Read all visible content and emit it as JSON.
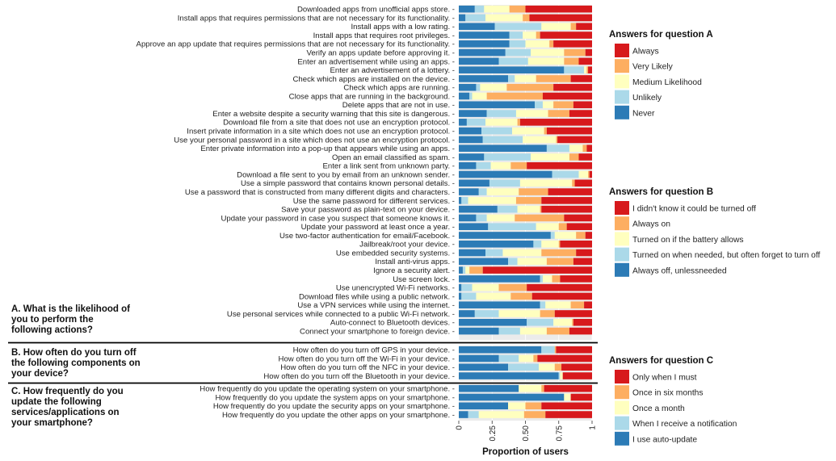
{
  "chart_data": {
    "type": "bar",
    "orientation": "horizontal",
    "stacked": true,
    "xlabel": "Proportion of users",
    "xlim": [
      0,
      1
    ],
    "x_ticks": [
      "0",
      "0.25",
      "0.50",
      "0.75",
      "1"
    ],
    "grid": true,
    "legend_position": "right",
    "panels": [
      {
        "id": "A",
        "title": [
          "A. What is the likelihood of",
          "you to perform the",
          "following actions?"
        ],
        "legend_title": "Answers for question A",
        "categories_order": [
          "Never",
          "Unlikely",
          "Medium Likelihood",
          "Very Likely",
          "Always"
        ],
        "legend": [
          {
            "label": "Always",
            "color": "#d7191c"
          },
          {
            "label": "Very Likely",
            "color": "#fdae61"
          },
          {
            "label": "Medium Likelihood",
            "color": "#ffffbf"
          },
          {
            "label": "Unlikely",
            "color": "#abd9e9"
          },
          {
            "label": "Never",
            "color": "#2c7bb6"
          }
        ],
        "rows": [
          {
            "label": "Downloaded apps from unofficial apps store.",
            "values": [
              0.12,
              0.07,
              0.19,
              0.12,
              0.5
            ]
          },
          {
            "label": "Install apps that requires permissions that are not necessary for its functionality.",
            "values": [
              0.05,
              0.15,
              0.28,
              0.05,
              0.47
            ]
          },
          {
            "label": "Install apps with a low rating.",
            "values": [
              0.27,
              0.35,
              0.22,
              0.04,
              0.12
            ]
          },
          {
            "label": "Install apps that requires root privileges.",
            "values": [
              0.38,
              0.1,
              0.1,
              0.03,
              0.39
            ]
          },
          {
            "label": "Approve an app update that requires permissions that are not necessary for its functionality.",
            "values": [
              0.38,
              0.12,
              0.18,
              0.03,
              0.29
            ]
          },
          {
            "label": "Verify an apps update before approving it.",
            "values": [
              0.35,
              0.19,
              0.25,
              0.16,
              0.05
            ]
          },
          {
            "label": "Enter an advertisement while using an apps.",
            "values": [
              0.3,
              0.22,
              0.27,
              0.11,
              0.1
            ]
          },
          {
            "label": "Enter an advertisement of a lottery.",
            "values": [
              0.79,
              0.15,
              0.02,
              0.01,
              0.03
            ]
          },
          {
            "label": "Check which apps are installed on the device.",
            "values": [
              0.37,
              0.05,
              0.16,
              0.26,
              0.16
            ]
          },
          {
            "label": "Check which apps are running.",
            "values": [
              0.13,
              0.03,
              0.2,
              0.35,
              0.29
            ]
          },
          {
            "label": "Close apps that are running in the background.",
            "values": [
              0.08,
              0.02,
              0.11,
              0.42,
              0.37
            ]
          },
          {
            "label": "Delete apps that are not in use.",
            "values": [
              0.57,
              0.06,
              0.08,
              0.15,
              0.14
            ]
          },
          {
            "label": "Enter a website despite a security warning that this site is dangerous.",
            "values": [
              0.21,
              0.22,
              0.24,
              0.16,
              0.17
            ]
          },
          {
            "label": "Download file from a site that does not use an encryption protocol.",
            "values": [
              0.06,
              0.14,
              0.24,
              0.02,
              0.54
            ]
          },
          {
            "label": "Insert private information in a site which does not use an encryption protocol.",
            "values": [
              0.17,
              0.23,
              0.24,
              0.02,
              0.34
            ]
          },
          {
            "label": "Use your personal password in a site which does not use an encryption protocol.",
            "values": [
              0.18,
              0.3,
              0.25,
              0.01,
              0.26
            ]
          },
          {
            "label": "Enter private information into a pop-up that appears while using an apps.",
            "values": [
              0.66,
              0.17,
              0.1,
              0.03,
              0.04
            ]
          },
          {
            "label": "Open an email classified as spam.",
            "values": [
              0.19,
              0.35,
              0.29,
              0.07,
              0.1
            ]
          },
          {
            "label": "Enter a link sent from unknown party.",
            "values": [
              0.13,
              0.11,
              0.15,
              0.12,
              0.49
            ]
          },
          {
            "label": "Download a file sent to you by email from an unknown sender.",
            "values": [
              0.7,
              0.2,
              0.07,
              0.01,
              0.02
            ]
          },
          {
            "label": "Use a simple password that contains known personal details.",
            "values": [
              0.23,
              0.23,
              0.39,
              0.02,
              0.13
            ]
          },
          {
            "label": "Use a password that is constructed from many different digits and characters.",
            "values": [
              0.15,
              0.06,
              0.24,
              0.22,
              0.33
            ]
          },
          {
            "label": "Use the same password for different services.",
            "values": [
              0.02,
              0.05,
              0.36,
              0.19,
              0.38
            ]
          },
          {
            "label": "Save your password as plain-text on your device.",
            "values": [
              0.29,
              0.15,
              0.17,
              0.01,
              0.38
            ]
          },
          {
            "label": "Update your password in case you suspect that someone knows it.",
            "values": [
              0.13,
              0.08,
              0.21,
              0.37,
              0.21
            ]
          },
          {
            "label": "Update your password at least once a year.",
            "values": [
              0.22,
              0.36,
              0.17,
              0.06,
              0.19
            ]
          },
          {
            "label": "Use two-factor authentication for email/Facebook.",
            "values": [
              0.69,
              0.03,
              0.16,
              0.07,
              0.05
            ]
          },
          {
            "label": "Jailbreak/root your device.",
            "values": [
              0.56,
              0.06,
              0.13,
              0.01,
              0.24
            ]
          },
          {
            "label": "Use embedded security systems.",
            "values": [
              0.2,
              0.13,
              0.29,
              0.26,
              0.12
            ]
          },
          {
            "label": "Install anti-virus apps.",
            "values": [
              0.37,
              0.07,
              0.22,
              0.2,
              0.14
            ]
          },
          {
            "label": "Ignore a security alert.",
            "values": [
              0.03,
              0.02,
              0.03,
              0.1,
              0.82
            ]
          },
          {
            "label": "Use screen lock.",
            "values": [
              0.61,
              0.02,
              0.07,
              0.06,
              0.24
            ]
          },
          {
            "label": "Use unencrypted Wi-Fi networks.",
            "values": [
              0.02,
              0.08,
              0.2,
              0.21,
              0.49
            ]
          },
          {
            "label": "Download files while using a public network.",
            "values": [
              0.02,
              0.11,
              0.26,
              0.16,
              0.45
            ]
          },
          {
            "label": "Use a VPN services while using the internet.",
            "values": [
              0.61,
              0.04,
              0.19,
              0.1,
              0.06
            ]
          },
          {
            "label": "Use personal services while connected to a public Wi-Fi network.",
            "values": [
              0.12,
              0.18,
              0.31,
              0.11,
              0.28
            ]
          },
          {
            "label": "Auto-connect to Bluetooth devices.",
            "values": [
              0.51,
              0.2,
              0.14,
              0.01,
              0.14
            ]
          },
          {
            "label": "Connect your smartphone to foreign device.",
            "values": [
              0.3,
              0.16,
              0.2,
              0.17,
              0.17
            ]
          }
        ]
      },
      {
        "id": "B",
        "title": [
          "B. How often do you turn off",
          "the following components on",
          "your device?"
        ],
        "legend_title": "Answers for question B",
        "categories_order": [
          "Always off, unlessneeded",
          "Turned on when needed, but often forget to turn off",
          "Turned on if the battery allows",
          "Always on",
          "I didn't know it could be turned off"
        ],
        "legend": [
          {
            "label": "I didn't know it could be turned off",
            "color": "#d7191c"
          },
          {
            "label": "Always on",
            "color": "#fdae61"
          },
          {
            "label": "Turned on if the battery allows",
            "color": "#ffffbf"
          },
          {
            "label": "Turned on when needed, but often forget to turn off",
            "color": "#abd9e9"
          },
          {
            "label": "Always off, unlessneeded",
            "color": "#2c7bb6"
          }
        ],
        "rows": [
          {
            "label": "How often do you turn off GPS in your device.",
            "values": [
              0.62,
              0.1,
              0.0,
              0.01,
              0.27
            ]
          },
          {
            "label": "How often do you turn off the Wi-Fi in your device.",
            "values": [
              0.3,
              0.15,
              0.11,
              0.03,
              0.41
            ]
          },
          {
            "label": "How often do you turn off the NFC in your device.",
            "values": [
              0.37,
              0.23,
              0.12,
              0.05,
              0.23
            ]
          },
          {
            "label": "How often do you turn off the Bluetooth in your device.",
            "values": [
              0.75,
              0.01,
              0.02,
              0.0,
              0.22
            ]
          }
        ]
      },
      {
        "id": "C",
        "title": [
          "C. How frequently do you",
          "update the following",
          "services/applications on",
          "your smartphone?"
        ],
        "legend_title": "Answers for question C",
        "categories_order": [
          "I use auto-update",
          "When I receive a notification",
          "Once a month",
          "Once in six months",
          "Only when I must"
        ],
        "legend": [
          {
            "label": "Only when I must",
            "color": "#d7191c"
          },
          {
            "label": "Once in six months",
            "color": "#fdae61"
          },
          {
            "label": "Once a month",
            "color": "#ffffbf"
          },
          {
            "label": "When I receive a notification",
            "color": "#abd9e9"
          },
          {
            "label": "I use auto-update",
            "color": "#2c7bb6"
          }
        ],
        "rows": [
          {
            "label": "How frequently do you update the operating system on your smartphone.",
            "values": [
              0.45,
              0.0,
              0.17,
              0.02,
              0.36
            ]
          },
          {
            "label": "How frequently do you update the system apps on your smartphone.",
            "values": [
              0.79,
              0.0,
              0.05,
              0.0,
              0.16
            ]
          },
          {
            "label": "How frequently do you update the security apps on your smartphone.",
            "values": [
              0.37,
              0.0,
              0.13,
              0.12,
              0.38
            ]
          },
          {
            "label": "How frequently do you update the other apps on your smartphone.",
            "values": [
              0.07,
              0.08,
              0.34,
              0.16,
              0.35
            ]
          }
        ]
      }
    ]
  }
}
